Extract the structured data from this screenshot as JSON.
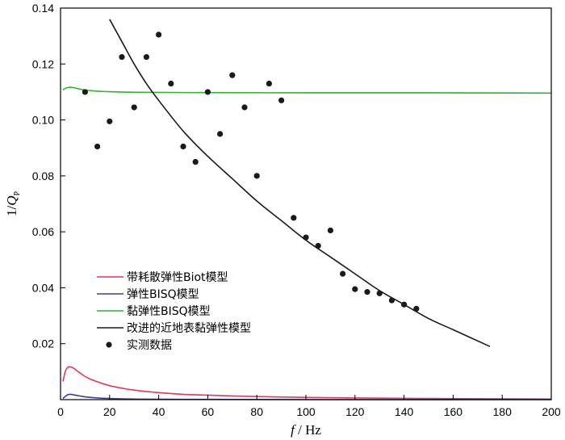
{
  "chart_data": {
    "type": "line",
    "title": "",
    "xlabel": {
      "var": "f",
      "unit": " / Hz"
    },
    "ylabel": {
      "prefix": "1/",
      "var": "Q",
      "sub": "P"
    },
    "xlim": [
      0,
      200
    ],
    "ylim": [
      0,
      0.14
    ],
    "xticks": [
      "0",
      "20",
      "40",
      "60",
      "80",
      "100",
      "120",
      "140",
      "160",
      "180",
      "200"
    ],
    "yticks": [
      "0.02",
      "0.04",
      "0.06",
      "0.08",
      "0.10",
      "0.12",
      "0.14"
    ],
    "grid": false,
    "legend_position": "bottom-left",
    "series": [
      {
        "name": "带耗散弹性Biot模型",
        "kind": "line",
        "color": "#e8365a",
        "x": [
          1,
          2,
          3,
          4,
          5,
          6,
          7,
          8,
          10,
          12,
          15,
          20,
          25,
          30,
          40,
          50,
          60,
          80,
          100,
          120,
          150,
          200
        ],
        "y": [
          0.0065,
          0.0102,
          0.0116,
          0.0117,
          0.0114,
          0.0108,
          0.0101,
          0.0095,
          0.0083,
          0.0074,
          0.0064,
          0.005,
          0.0041,
          0.0034,
          0.0025,
          0.0019,
          0.0016,
          0.0011,
          0.0008,
          0.0006,
          0.0004,
          0.0002
        ]
      },
      {
        "name": "弹性BISQ模型",
        "kind": "line",
        "color": "#3a3aa0",
        "x": [
          1,
          2,
          3,
          4,
          5,
          6,
          8,
          10,
          15,
          20,
          30,
          50,
          100,
          200
        ],
        "y": [
          0.0004,
          0.0012,
          0.0018,
          0.0019,
          0.0018,
          0.0016,
          0.0013,
          0.001,
          0.0006,
          0.0004,
          0.0002,
          0.0001,
          0.0,
          0.0
        ]
      },
      {
        "name": "黏弹性BISQ模型",
        "kind": "line",
        "color": "#2db52d",
        "x": [
          1,
          2,
          3,
          4,
          5,
          6,
          8,
          10,
          15,
          20,
          30,
          50,
          100,
          150,
          200
        ],
        "y": [
          0.1107,
          0.1113,
          0.1116,
          0.1117,
          0.1116,
          0.1114,
          0.111,
          0.1107,
          0.1103,
          0.1101,
          0.1099,
          0.1098,
          0.1097,
          0.1097,
          0.1096
        ]
      },
      {
        "name": "改进的近地表黏弹性模型",
        "kind": "line",
        "color": "#1a1a1a",
        "x": [
          20,
          25,
          30,
          35,
          40,
          50,
          60,
          70,
          80,
          90,
          100,
          110,
          120,
          130,
          140,
          150,
          160,
          175
        ],
        "y": [
          0.136,
          0.128,
          0.12,
          0.113,
          0.107,
          0.096,
          0.087,
          0.079,
          0.071,
          0.064,
          0.057,
          0.051,
          0.045,
          0.039,
          0.034,
          0.029,
          0.025,
          0.019
        ]
      },
      {
        "name": "实测数据",
        "kind": "scatter",
        "color": "#1a1a1a",
        "x": [
          10,
          15,
          20,
          25,
          30,
          35,
          40,
          45,
          50,
          55,
          60,
          65,
          70,
          75,
          80,
          85,
          90,
          95,
          100,
          105,
          110,
          115,
          120,
          125,
          130,
          135,
          140,
          145
        ],
        "y": [
          0.11,
          0.0905,
          0.0995,
          0.1225,
          0.1045,
          0.1225,
          0.1305,
          0.113,
          0.0905,
          0.085,
          0.11,
          0.095,
          0.116,
          0.1045,
          0.08,
          0.113,
          0.107,
          0.065,
          0.058,
          0.055,
          0.0605,
          0.045,
          0.0395,
          0.0385,
          0.038,
          0.0355,
          0.034,
          0.0325
        ]
      }
    ]
  }
}
